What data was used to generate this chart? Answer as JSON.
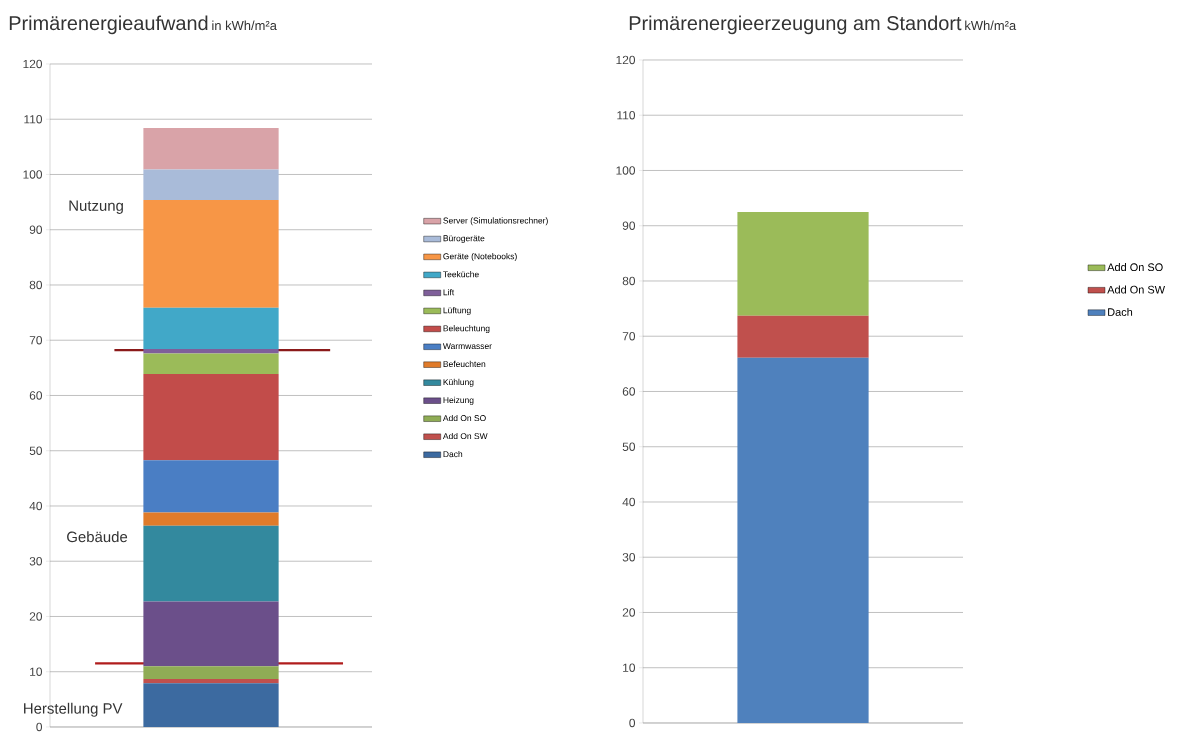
{
  "chart_data": [
    {
      "type": "bar",
      "title": "Primärenergieaufwand",
      "subtitle": "in kWh/m²a",
      "categories": [
        null
      ],
      "stacked": true,
      "ylim": [
        0,
        120
      ],
      "yticks": [
        0,
        10,
        20,
        30,
        40,
        50,
        60,
        70,
        80,
        90,
        100,
        110,
        120
      ],
      "grid": "y",
      "legend": "right",
      "series": [
        {
          "name": "Dach",
          "color": "#3c6aa0",
          "values": [
            7.9
          ]
        },
        {
          "name": "Add On SW",
          "color": "#c0504d",
          "values": [
            0.8
          ]
        },
        {
          "name": "Add On SO",
          "color": "#8fac55",
          "values": [
            2.3
          ]
        },
        {
          "name": "Heizung",
          "color": "#6b4f8a",
          "values": [
            11.7
          ]
        },
        {
          "name": "Kühlung",
          "color": "#33899e",
          "values": [
            13.7
          ]
        },
        {
          "name": "Befeuchten",
          "color": "#e07b2a",
          "values": [
            2.4
          ]
        },
        {
          "name": "Warmwasser",
          "color": "#4a7ec4",
          "values": [
            9.5
          ]
        },
        {
          "name": "Beleuchtung",
          "color": "#c24c4a",
          "values": [
            15.6
          ]
        },
        {
          "name": "Lüftung",
          "color": "#9bbb59",
          "values": [
            3.7
          ]
        },
        {
          "name": "Lift",
          "color": "#7f5f9a",
          "values": [
            0.8
          ]
        },
        {
          "name": "Teeküche",
          "color": "#41a8c8",
          "values": [
            7.5
          ]
        },
        {
          "name": "Geräte (Notebooks)",
          "color": "#f79646",
          "values": [
            19.5
          ]
        },
        {
          "name": "Bürogeräte",
          "color": "#a9bbd9",
          "values": [
            5.5
          ]
        },
        {
          "name": "Server (Simulationsrechner)",
          "color": "#d9a3a8",
          "values": [
            7.5
          ]
        }
      ],
      "ref_lines": [
        {
          "axis": "y",
          "value": 68.2,
          "color": "#8b1a1a"
        },
        {
          "axis": "y",
          "value": 11.5,
          "color": "#b01c1c"
        }
      ],
      "annotations": [
        "Nutzung",
        "Gebäude",
        "Herstellung PV"
      ]
    },
    {
      "type": "bar",
      "title": "Primärenergieerzeugung am Standort",
      "subtitle": "kWh/m²a",
      "categories": [
        null
      ],
      "stacked": true,
      "ylim": [
        0,
        120
      ],
      "yticks": [
        0,
        10,
        20,
        30,
        40,
        50,
        60,
        70,
        80,
        90,
        100,
        110,
        120
      ],
      "grid": "y",
      "legend": "right",
      "series": [
        {
          "name": "Dach",
          "color": "#4f81bd",
          "values": [
            66.1
          ]
        },
        {
          "name": "Add On SW",
          "color": "#c0504d",
          "values": [
            7.6
          ]
        },
        {
          "name": "Add On SO",
          "color": "#9bbb59",
          "values": [
            18.8
          ]
        }
      ]
    }
  ]
}
